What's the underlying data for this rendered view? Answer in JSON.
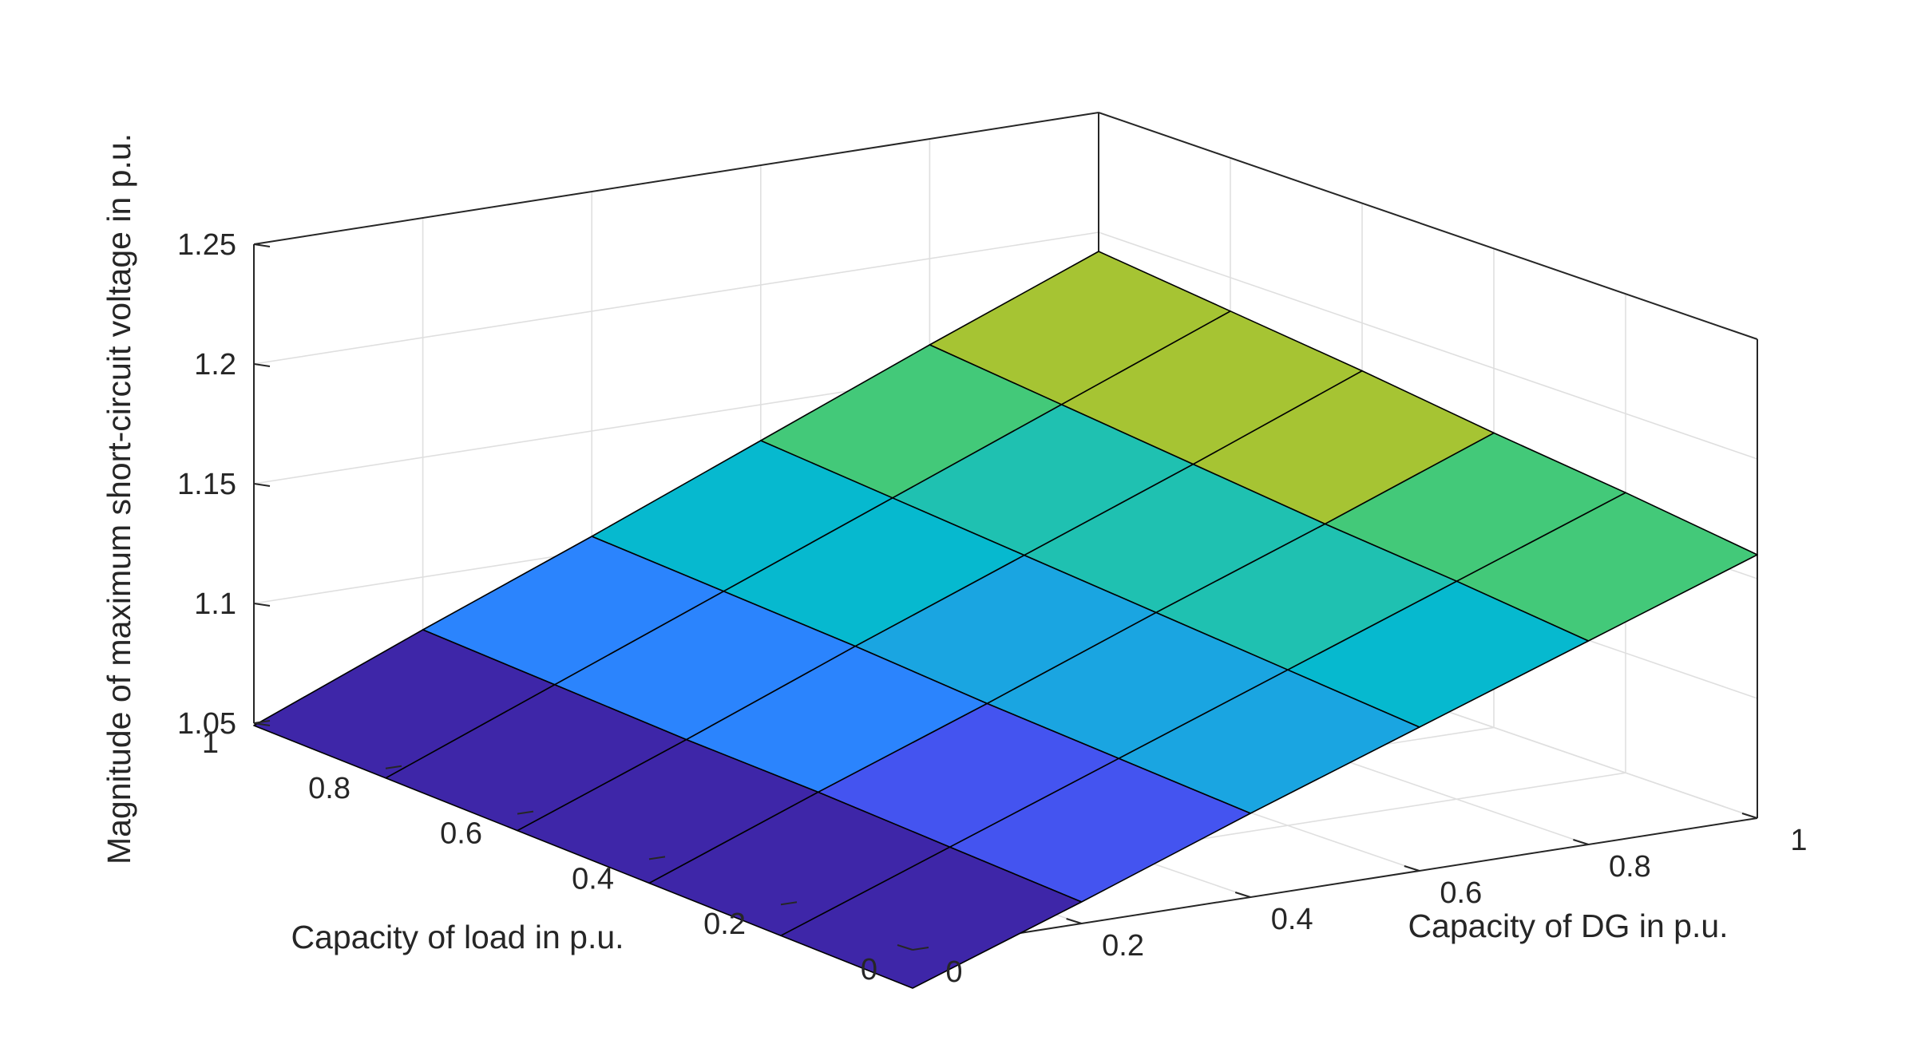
{
  "chart_data": {
    "type": "surface",
    "title": "",
    "xlabel": "Capacity of DG in p.u.",
    "ylabel": "Capacity of load in p.u.",
    "zlabel": "Magnitude of maximum short-circuit voltage in p.u.",
    "x": [
      0,
      0.2,
      0.4,
      0.6,
      0.8,
      1
    ],
    "y": [
      0,
      0.2,
      0.4,
      0.6,
      0.8,
      1
    ],
    "z": [
      [
        1.034,
        1.059,
        1.085,
        1.11,
        1.135,
        1.16
      ],
      [
        1.037,
        1.063,
        1.089,
        1.115,
        1.141,
        1.167
      ],
      [
        1.04,
        1.067,
        1.093,
        1.12,
        1.146,
        1.173
      ],
      [
        1.043,
        1.07,
        1.098,
        1.125,
        1.152,
        1.18
      ],
      [
        1.046,
        1.074,
        1.102,
        1.13,
        1.158,
        1.186
      ],
      [
        1.049,
        1.078,
        1.106,
        1.135,
        1.164,
        1.192
      ]
    ],
    "xlim": [
      0,
      1
    ],
    "ylim": [
      0,
      1
    ],
    "zlim": [
      1.05,
      1.25
    ],
    "xticks": [
      "0",
      "0.2",
      "0.4",
      "0.6",
      "0.8",
      "1"
    ],
    "yticks": [
      "0",
      "0.2",
      "0.4",
      "0.6",
      "0.8",
      "1"
    ],
    "zticks": [
      "1.05",
      "1.1",
      "1.15",
      "1.2",
      "1.25"
    ],
    "colormap": [
      "#3e26a8",
      "#4454f0",
      "#2b84fd",
      "#1aa5e1",
      "#06b9cf",
      "#1fc1b1",
      "#43c979",
      "#a6c433",
      "#d2bc2e",
      "#f5e21c"
    ],
    "edge_color": "#000000",
    "grid": true,
    "box": true
  }
}
